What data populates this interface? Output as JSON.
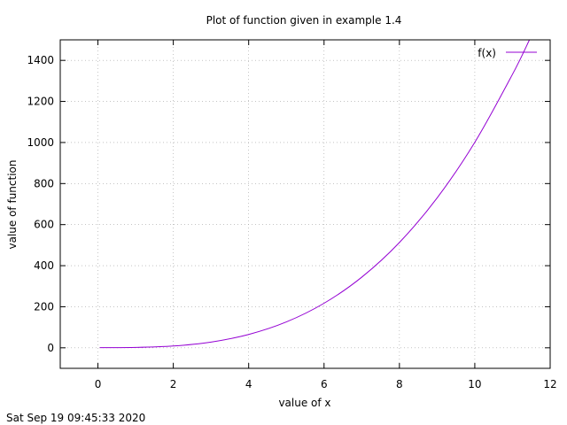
{
  "chart_data": {
    "type": "line",
    "title": "Plot of function given in example 1.4",
    "xlabel": "value of x",
    "ylabel": "value of function",
    "xlim": [
      -1,
      12
    ],
    "ylim": [
      -100,
      1500
    ],
    "xticks": [
      0,
      2,
      4,
      6,
      8,
      10,
      12
    ],
    "yticks": [
      0,
      200,
      400,
      600,
      800,
      1000,
      1200,
      1400
    ],
    "grid": true,
    "legend_position": "top-right",
    "series": [
      {
        "name": "f(x)",
        "color": "#9400d3",
        "x": [
          0.05,
          1,
          2,
          3,
          4,
          5,
          6,
          7,
          8,
          9,
          10,
          11,
          11.45
        ],
        "y": [
          1,
          2,
          9,
          28,
          65,
          126,
          217,
          344,
          513,
          730,
          1001,
          1332,
          1500
        ]
      }
    ]
  },
  "footer": {
    "timestamp": "Sat Sep 19 09:45:33 2020"
  }
}
